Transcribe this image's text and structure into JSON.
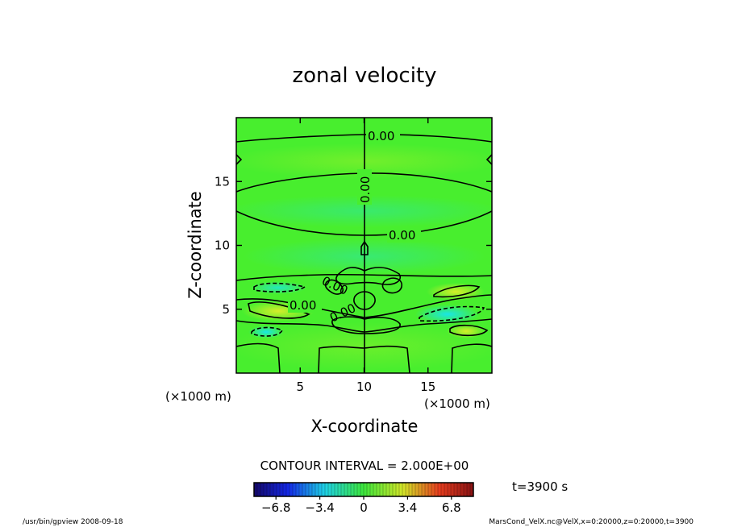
{
  "chart_data": {
    "type": "heatmap",
    "title": "zonal velocity",
    "xlabel": "X-coordinate",
    "ylabel": "Z-coordinate",
    "x_unit": "(×1000 m)",
    "z_unit": "(×1000 m)",
    "xlim": [
      0,
      20
    ],
    "ylim": [
      0,
      20
    ],
    "x_ticks": [
      5,
      10,
      15
    ],
    "y_ticks": [
      5,
      10,
      15
    ],
    "contour_interval_text": "CONTOUR INTERVAL = 2.000E+00",
    "contour_labels": [
      "0.00",
      "0.00",
      "0.00",
      "0.00",
      "0.00",
      "0.00"
    ],
    "colorbar": {
      "min": -8.5,
      "max": 8.5,
      "ticks": [
        "−6.8",
        "−3.4",
        "0",
        "3.4",
        "6.8"
      ],
      "tick_values": [
        -6.8,
        -3.4,
        0,
        3.4,
        6.8
      ]
    },
    "time_label": "t=3900 s"
  },
  "footer": {
    "left": "/usr/bin/gpview   2008-09-18",
    "right": "MarsCond_VelX.nc@VelX,x=0:20000,z=0:20000,t=3900"
  }
}
